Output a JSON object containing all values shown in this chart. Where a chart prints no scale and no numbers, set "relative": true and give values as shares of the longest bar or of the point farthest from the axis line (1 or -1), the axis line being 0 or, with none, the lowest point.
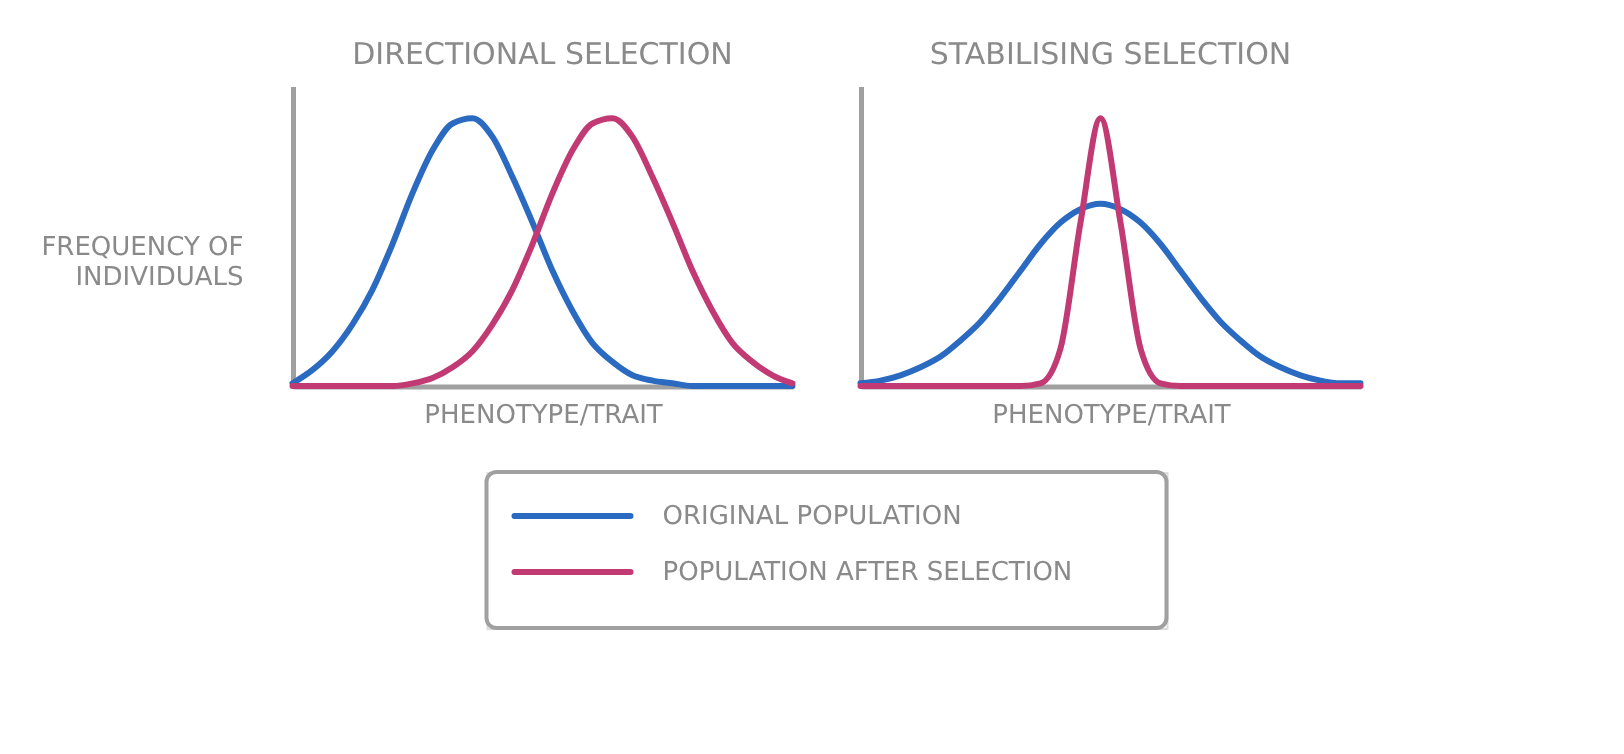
{
  "chart_data": [
    {
      "type": "line",
      "title": "DIRECTIONAL SELECTION",
      "xlabel": "PHENOTYPE/TRAIT",
      "ylabel": "FREQUENCY OF\nINDIVIDUALS",
      "relative": true,
      "legend": "bottom",
      "categories": [
        null,
        null,
        null,
        null,
        null,
        null,
        null,
        null,
        null,
        null,
        null,
        null,
        null,
        null,
        null,
        null,
        null,
        null,
        null,
        null,
        null,
        null,
        null,
        null,
        null,
        null
      ],
      "series": [
        {
          "name": "ORIGINAL POPULATION",
          "color": "#2a6ac0",
          "values": [
            0.01,
            0.06,
            0.13,
            0.23,
            0.36,
            0.53,
            0.72,
            0.88,
            0.98,
            1,
            0.93,
            0.78,
            0.61,
            0.43,
            0.28,
            0.16,
            0.09,
            0.04,
            0.02,
            0.01,
            0,
            0,
            0,
            0,
            0,
            0
          ]
        },
        {
          "name": "POPULATION AFTER SELECTION",
          "color": "#c13a73",
          "values": [
            0,
            0,
            0,
            0,
            0,
            0,
            0.01,
            0.03,
            0.07,
            0.13,
            0.23,
            0.36,
            0.53,
            0.72,
            0.88,
            0.98,
            1,
            0.93,
            0.78,
            0.61,
            0.43,
            0.28,
            0.16,
            0.09,
            0.04,
            0.01
          ]
        }
      ]
    },
    {
      "type": "line",
      "title": "STABILISING SELECTION",
      "xlabel": "PHENOTYPE/TRAIT",
      "relative": true,
      "legend": "bottom",
      "categories": [
        null,
        null,
        null,
        null,
        null,
        null,
        null,
        null,
        null,
        null,
        null,
        null,
        null,
        null,
        null,
        null,
        null,
        null,
        null,
        null,
        null,
        null,
        null,
        null,
        null,
        null
      ],
      "series": [
        {
          "name": "ORIGINAL POPULATION",
          "color": "#2a6ac0",
          "values": [
            0.01,
            0.02,
            0.04,
            0.07,
            0.11,
            0.17,
            0.24,
            0.33,
            0.43,
            0.53,
            0.61,
            0.66,
            0.68,
            0.66,
            0.61,
            0.53,
            0.43,
            0.33,
            0.24,
            0.17,
            0.11,
            0.07,
            0.04,
            0.02,
            0.01,
            0.01
          ]
        },
        {
          "name": "POPULATION AFTER SELECTION",
          "color": "#c13a73",
          "values": [
            0,
            0,
            0,
            0,
            0,
            0,
            0,
            0,
            0,
            0.01,
            0.14,
            0.61,
            1,
            0.61,
            0.14,
            0.01,
            0,
            0,
            0,
            0,
            0,
            0,
            0,
            0,
            0,
            0
          ]
        }
      ]
    }
  ]
}
